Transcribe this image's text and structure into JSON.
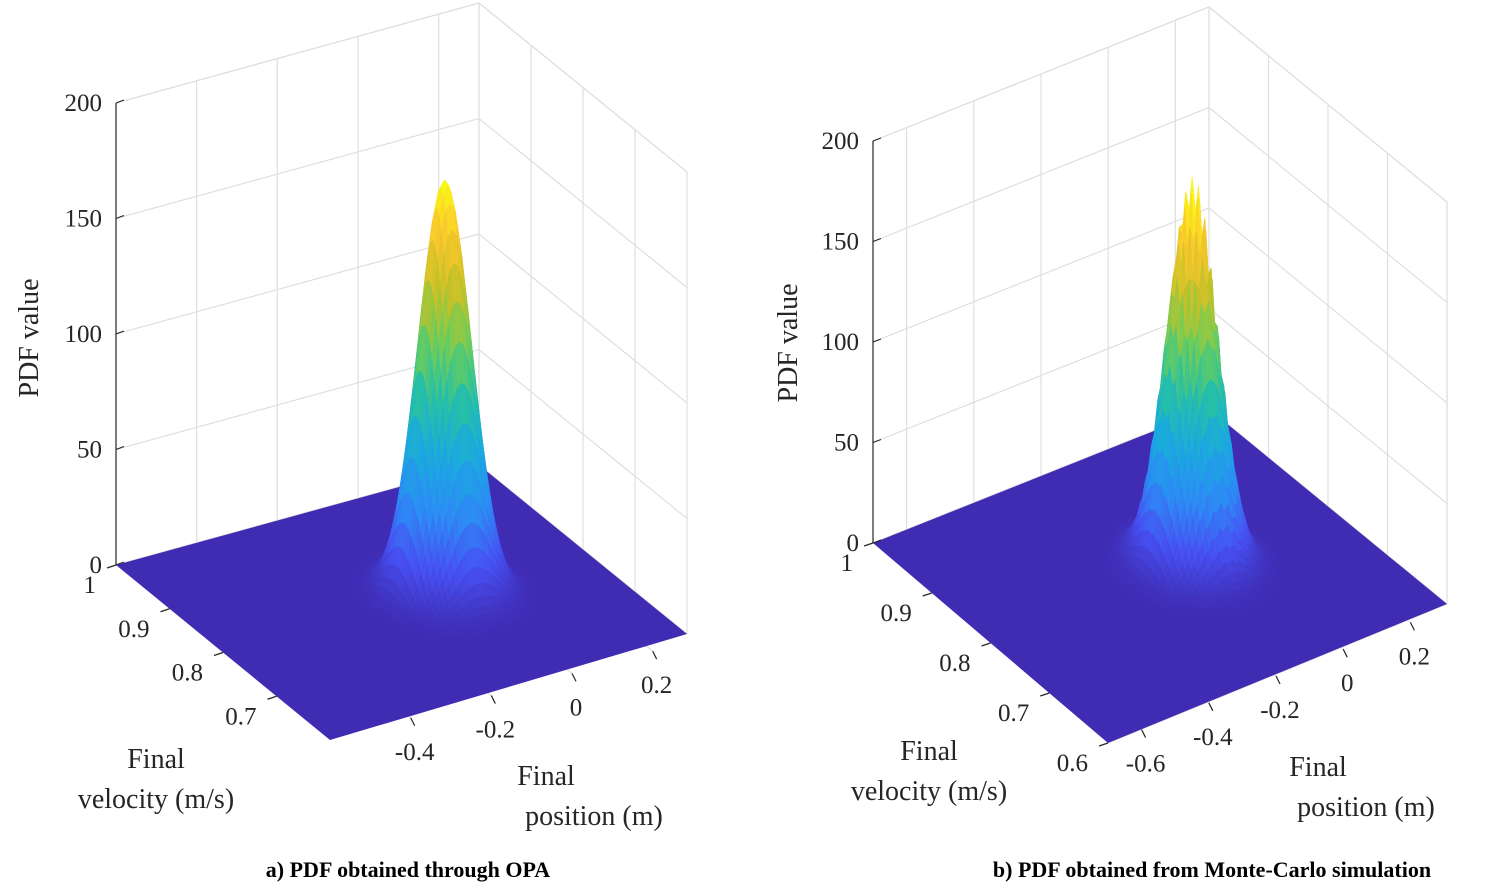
{
  "chart_data": [
    {
      "type": "surface",
      "caption": "a) PDF obtained through OPA",
      "zlabel": "PDF value",
      "xlabel": "Final velocity (m/s)",
      "ylabel": "Final position (m)",
      "xlabel_lines": [
        "Final",
        "velocity (m/s)"
      ],
      "ylabel_lines": [
        "Final",
        "position (m)"
      ],
      "zlim": [
        0,
        200
      ],
      "z_ticks": [
        "0",
        "50",
        "100",
        "150",
        "200"
      ],
      "velocity_range": [
        0.6,
        1.0
      ],
      "velocity_ticks": [
        "1",
        "0.9",
        "0.8",
        "0.7"
      ],
      "position_range": [
        -0.6,
        0.3
      ],
      "position_ticks": [
        "-0.4",
        "-0.2",
        "0",
        "0.2"
      ],
      "peak": {
        "velocity": 0.8,
        "position": -0.05,
        "value": 178
      },
      "spread": {
        "velocity": 0.028,
        "position": 0.055
      },
      "noisy": false
    },
    {
      "type": "surface",
      "caption": "b) PDF obtained from Monte-Carlo simulation",
      "zlabel": "PDF value",
      "xlabel": "Final velocity (m/s)",
      "ylabel": "Final position (m)",
      "xlabel_lines": [
        "Final",
        "velocity (m/s)"
      ],
      "ylabel_lines": [
        "Final",
        "position (m)"
      ],
      "zlim": [
        0,
        200
      ],
      "z_ticks": [
        "0",
        "50",
        "100",
        "150",
        "200"
      ],
      "velocity_range": [
        0.6,
        1.0
      ],
      "velocity_ticks": [
        "1",
        "0.9",
        "0.8",
        "0.7",
        "0.6"
      ],
      "position_range": [
        -0.7,
        0.3
      ],
      "position_ticks": [
        "-0.6",
        "-0.4",
        "-0.2",
        "0",
        "0.2"
      ],
      "peak": {
        "velocity": 0.8,
        "position": -0.1,
        "value": 183
      },
      "spread": {
        "velocity": 0.028,
        "position": 0.06
      },
      "noisy": true
    }
  ]
}
